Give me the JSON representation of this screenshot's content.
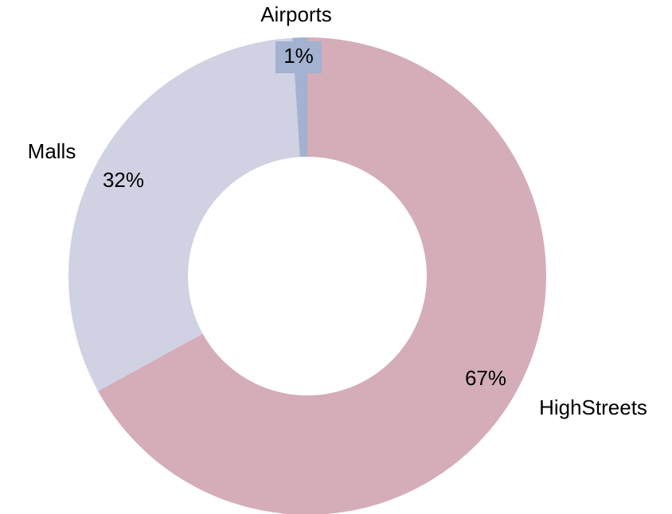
{
  "chart_data": {
    "type": "donut",
    "categories": [
      "HighStreets",
      "Malls",
      "Airports"
    ],
    "values": [
      67,
      32,
      1
    ],
    "value_labels": [
      "67%",
      "32%",
      "1%"
    ],
    "colors": [
      "#d4adb8",
      "#d1d1e4",
      "#a2b2d0"
    ]
  }
}
